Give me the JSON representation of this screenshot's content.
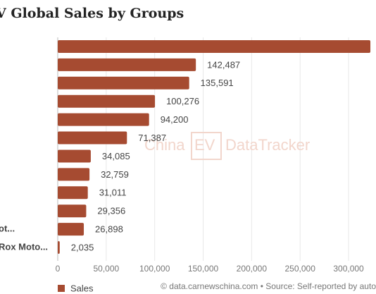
{
  "chart_data": {
    "type": "bar",
    "orientation": "horizontal",
    "title": "V Global Sales by Groups",
    "categories": [
      null,
      null,
      null,
      null,
      null,
      null,
      null,
      null,
      null,
      null,
      "ot...",
      "Rox Moto..."
    ],
    "series": [
      {
        "name": "Sales",
        "color": "#a64b31",
        "values": [
          322500,
          142487,
          135591,
          100276,
          94200,
          71387,
          34085,
          32759,
          31011,
          29356,
          26898,
          2035
        ],
        "value_labels": [
          null,
          "142,487",
          "135,591",
          "100,276",
          "94,200",
          "71,387",
          "34,085",
          "32,759",
          "31,011",
          "29,356",
          "26,898",
          "2,035"
        ]
      }
    ],
    "xlim": [
      0,
      328000
    ],
    "xticks": [
      0,
      {
        "value": 50000,
        "label": "50,000"
      },
      {
        "value": 100000,
        "label": "100,000"
      },
      {
        "value": 150000,
        "label": "150,000"
      },
      {
        "value": 200000,
        "label": "200,000"
      },
      {
        "value": 250000,
        "label": "250,000"
      },
      {
        "value": 300000,
        "label": "300,000"
      }
    ],
    "grid": true,
    "legend": "bottom-left",
    "watermark": {
      "left": "China",
      "badge": "EV",
      "right": "DataTracker"
    },
    "source": "© data.carnewschina.com • Source: Self-reported by auto"
  }
}
